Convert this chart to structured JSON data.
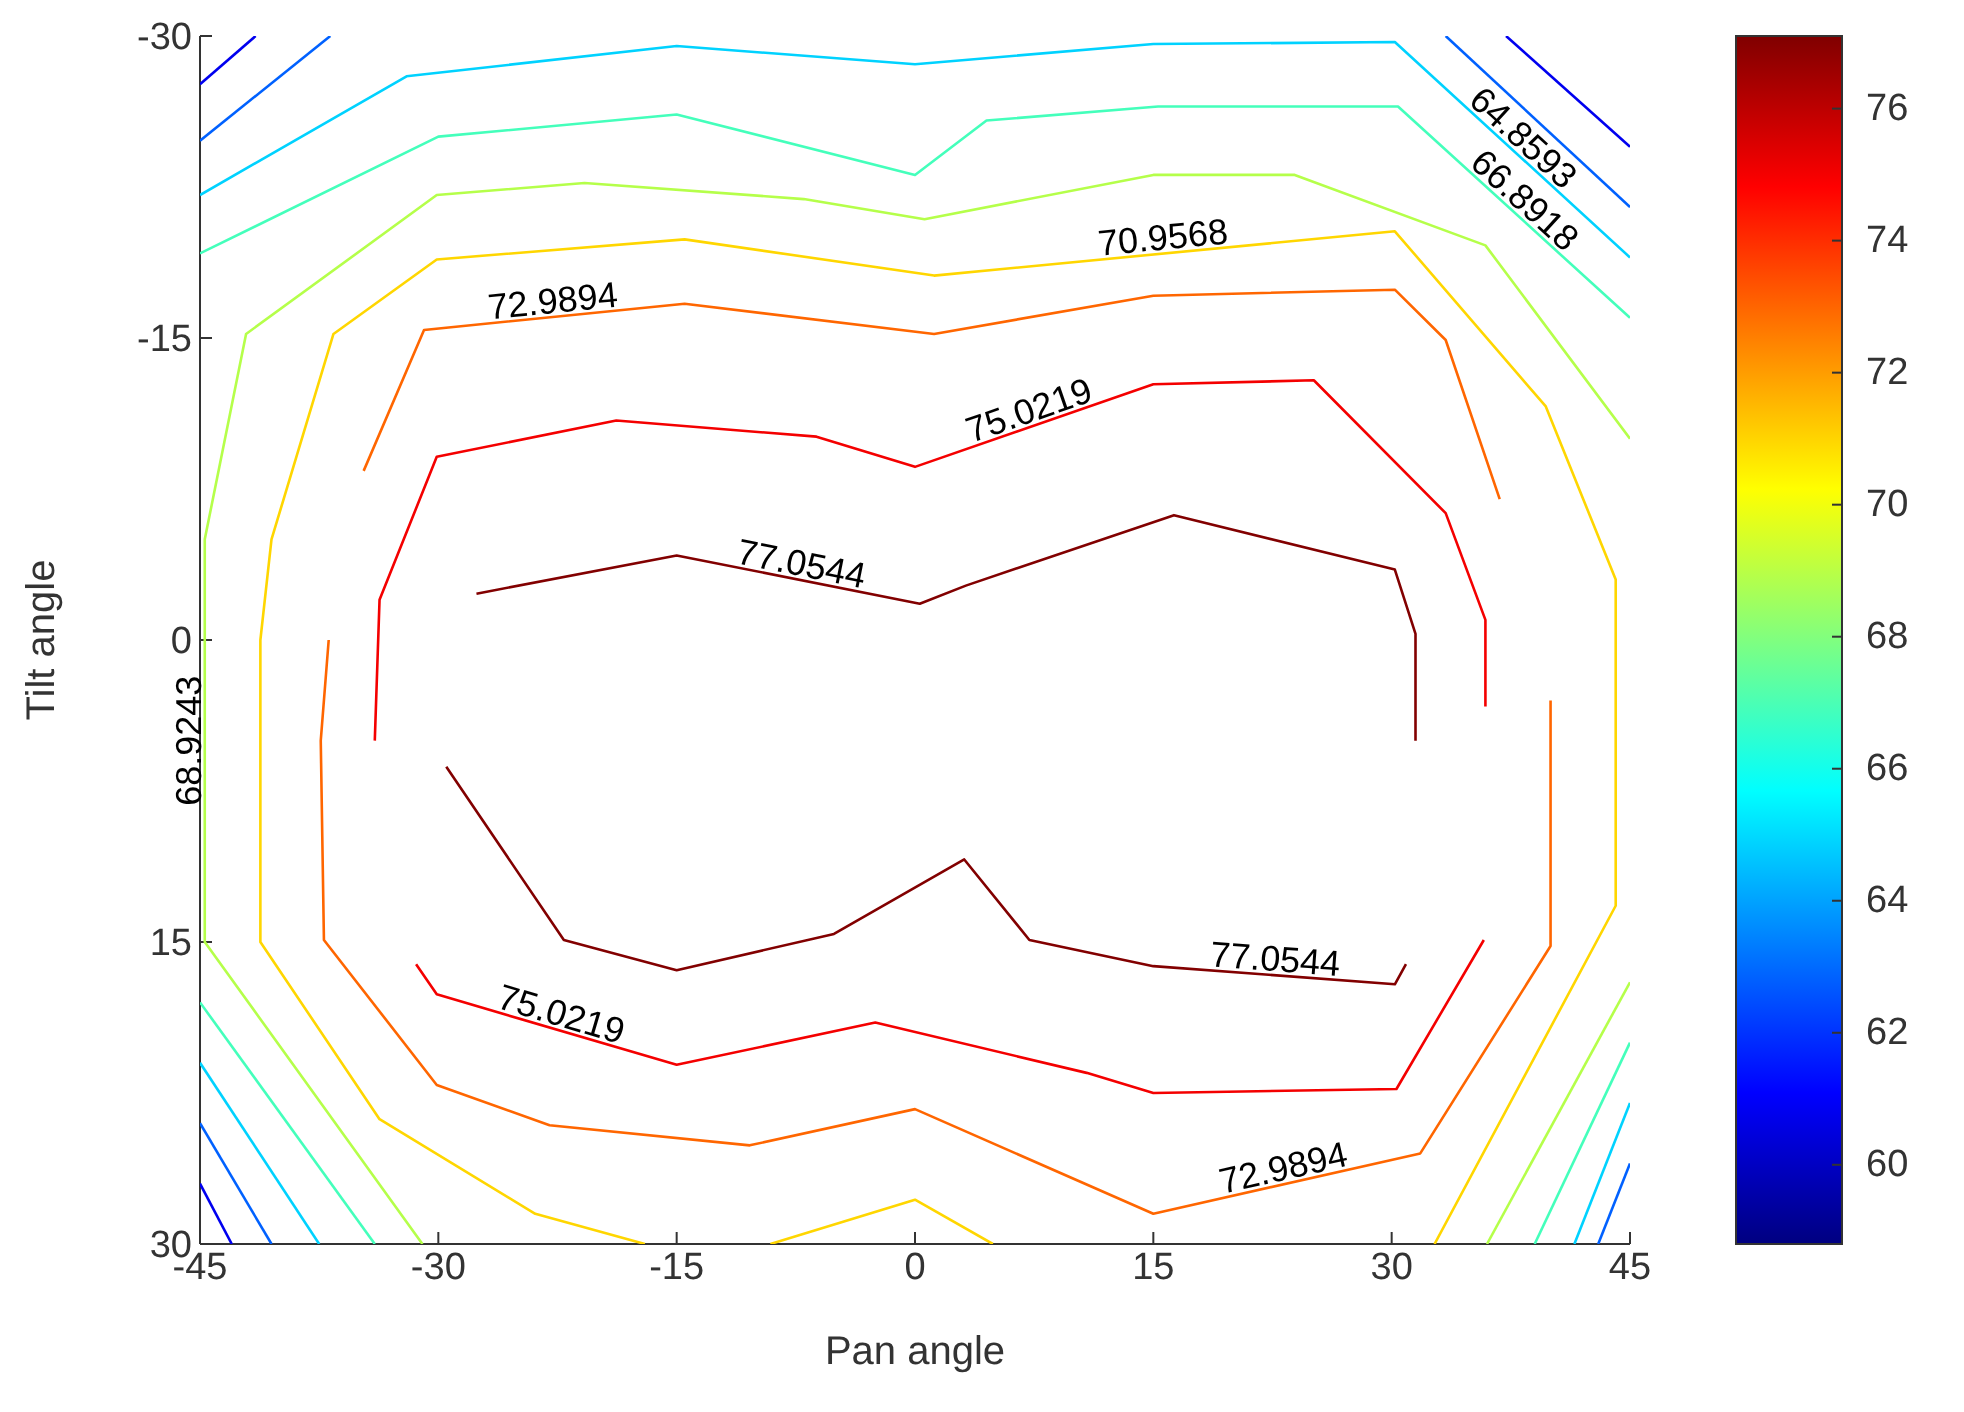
{
  "chart_data": {
    "type": "line",
    "xlabel": "Pan angle",
    "ylabel": "Tilt angle",
    "xlim": [
      -45,
      45
    ],
    "xticks": [
      -45,
      -30,
      -15,
      0,
      15,
      30,
      45
    ],
    "ylim": [
      30,
      -30
    ],
    "yticks": [
      -30,
      -15,
      0,
      15,
      30
    ],
    "clim": [
      58.8,
      77.1
    ],
    "cticks": [
      60,
      62,
      64,
      66,
      68,
      70,
      72,
      74,
      76
    ],
    "grid": false,
    "legend": false,
    "series": [
      {
        "name": "77.0544",
        "color": "#820000",
        "x": [
          -27.6,
          -15,
          0.3,
          3.2,
          16.3,
          30.2,
          31.5,
          31.5
        ],
        "values": [
          -2.3,
          -4.2,
          -1.8,
          -2.7,
          -6.2,
          -3.5,
          -0.3,
          5
        ]
      },
      {
        "name": "77.0544",
        "color": "#820000",
        "x": [
          30.9,
          30.2,
          15,
          7.2,
          3.1,
          -5.1,
          -15,
          -22.1,
          -29.5
        ],
        "values": [
          16.1,
          17.1,
          16.2,
          14.9,
          10.9,
          14.6,
          16.4,
          14.9,
          6.3
        ]
      },
      {
        "name": "75.0219",
        "color": "#f40000",
        "x": [
          -34,
          -33.7,
          -30.1,
          -18.8,
          -6.2,
          0,
          15,
          25.1,
          33.4,
          35.9,
          35.9
        ],
        "values": [
          5,
          -2,
          -9.1,
          -10.9,
          -10.1,
          -8.6,
          -12.7,
          -12.9,
          -6.3,
          -1,
          3.3
        ]
      },
      {
        "name": "75.0219",
        "color": "#f40000",
        "x": [
          35.8,
          30.3,
          15,
          10.8,
          -2.5,
          -15,
          -30.1,
          -31.4
        ],
        "values": [
          14.9,
          22.3,
          22.5,
          21.5,
          19,
          21.1,
          17.6,
          16.1
        ]
      },
      {
        "name": "72.9894",
        "color": "#ff6600",
        "x": [
          -34.7,
          -30.9,
          -14.5,
          1.2,
          15,
          30.2,
          33.4,
          36.8
        ],
        "values": [
          -8.4,
          -15.4,
          -16.7,
          -15.2,
          -17.1,
          -17.4,
          -14.9,
          -7
        ]
      },
      {
        "name": "72.9894",
        "color": "#ff6600",
        "x": [
          40,
          40,
          31.8,
          15,
          0,
          -10.4,
          -23,
          -30.1,
          -37.2,
          -37.4,
          -36.9
        ],
        "values": [
          3,
          15.2,
          25.5,
          28.5,
          23.3,
          25.1,
          24.1,
          22.1,
          14.9,
          5,
          0
        ]
      },
      {
        "name": "70.9568",
        "color": "#ffd600",
        "x": [
          -17,
          -23.9,
          -33.7,
          -41.2,
          -41.2,
          -40.5,
          -36.6,
          -30.1,
          -14.5,
          1.2,
          30.2,
          39.7,
          44.1,
          44.1,
          32.7
        ],
        "values": [
          30,
          28.5,
          23.8,
          15,
          0,
          -5,
          -15.2,
          -18.9,
          -19.9,
          -18.1,
          -20.3,
          -11.6,
          -3,
          13.2,
          30
        ]
      },
      {
        "color": "#ffd600",
        "x": [
          -9.1,
          0,
          4.9
        ],
        "values": [
          30,
          27.8,
          30
        ]
      },
      {
        "name": "68.9243",
        "color": "#b5ff4a",
        "x": [
          -31,
          -44.7,
          -44.7,
          -42.1,
          -30.1,
          -20.8,
          -7,
          0.6,
          15,
          23.9,
          35.9,
          45
        ],
        "values": [
          30,
          15,
          -5,
          -15.2,
          -22.1,
          -22.7,
          -21.9,
          -20.9,
          -23.1,
          -23.1,
          -19.6,
          -10
        ]
      },
      {
        "color": "#b5ff4a",
        "x": [
          45,
          36
        ],
        "values": [
          17,
          30
        ]
      },
      {
        "name": "66.8918",
        "color": "#44ffbb",
        "x": [
          -45,
          -30,
          -15,
          0,
          4.5,
          15.3,
          30.4,
          45
        ],
        "values": [
          -19.2,
          -25,
          -26.1,
          -23.1,
          -25.8,
          -26.5,
          -26.5,
          -16
        ]
      },
      {
        "color": "#44ffbb",
        "x": [
          -45,
          -34
        ],
        "values": [
          18,
          30
        ]
      },
      {
        "color": "#44ffbb",
        "x": [
          45,
          39
        ],
        "values": [
          20,
          30
        ]
      },
      {
        "name": "64.8593",
        "color": "#00d2ff",
        "x": [
          -45,
          -32,
          -15,
          0,
          15,
          30.2,
          45
        ],
        "values": [
          -22.1,
          -28,
          -29.5,
          -28.6,
          -29.6,
          -29.7,
          -19
        ]
      },
      {
        "color": "#00d2ff",
        "x": [
          -45,
          -37.5
        ],
        "values": [
          21,
          30
        ]
      },
      {
        "color": "#00d2ff",
        "x": [
          45,
          41.5
        ],
        "values": [
          23,
          30
        ]
      },
      {
        "color": "#0061ff",
        "x": [
          -36.8,
          -45
        ],
        "values": [
          -30,
          -24.8
        ]
      },
      {
        "color": "#0061ff",
        "x": [
          33.4,
          45
        ],
        "values": [
          -30,
          -21.5
        ]
      },
      {
        "color": "#0061ff",
        "x": [
          -45,
          -40.5
        ],
        "values": [
          24,
          30
        ]
      },
      {
        "color": "#0061ff",
        "x": [
          45,
          43
        ],
        "values": [
          26,
          30
        ]
      },
      {
        "color": "#0000ef",
        "x": [
          -41.5,
          -45
        ],
        "values": [
          -30,
          -27.6
        ]
      },
      {
        "color": "#0000ef",
        "x": [
          37.2,
          45
        ],
        "values": [
          -30,
          -24.5
        ]
      },
      {
        "color": "#0000ef",
        "x": [
          -45,
          -43
        ],
        "values": [
          27,
          30
        ]
      }
    ]
  }
}
